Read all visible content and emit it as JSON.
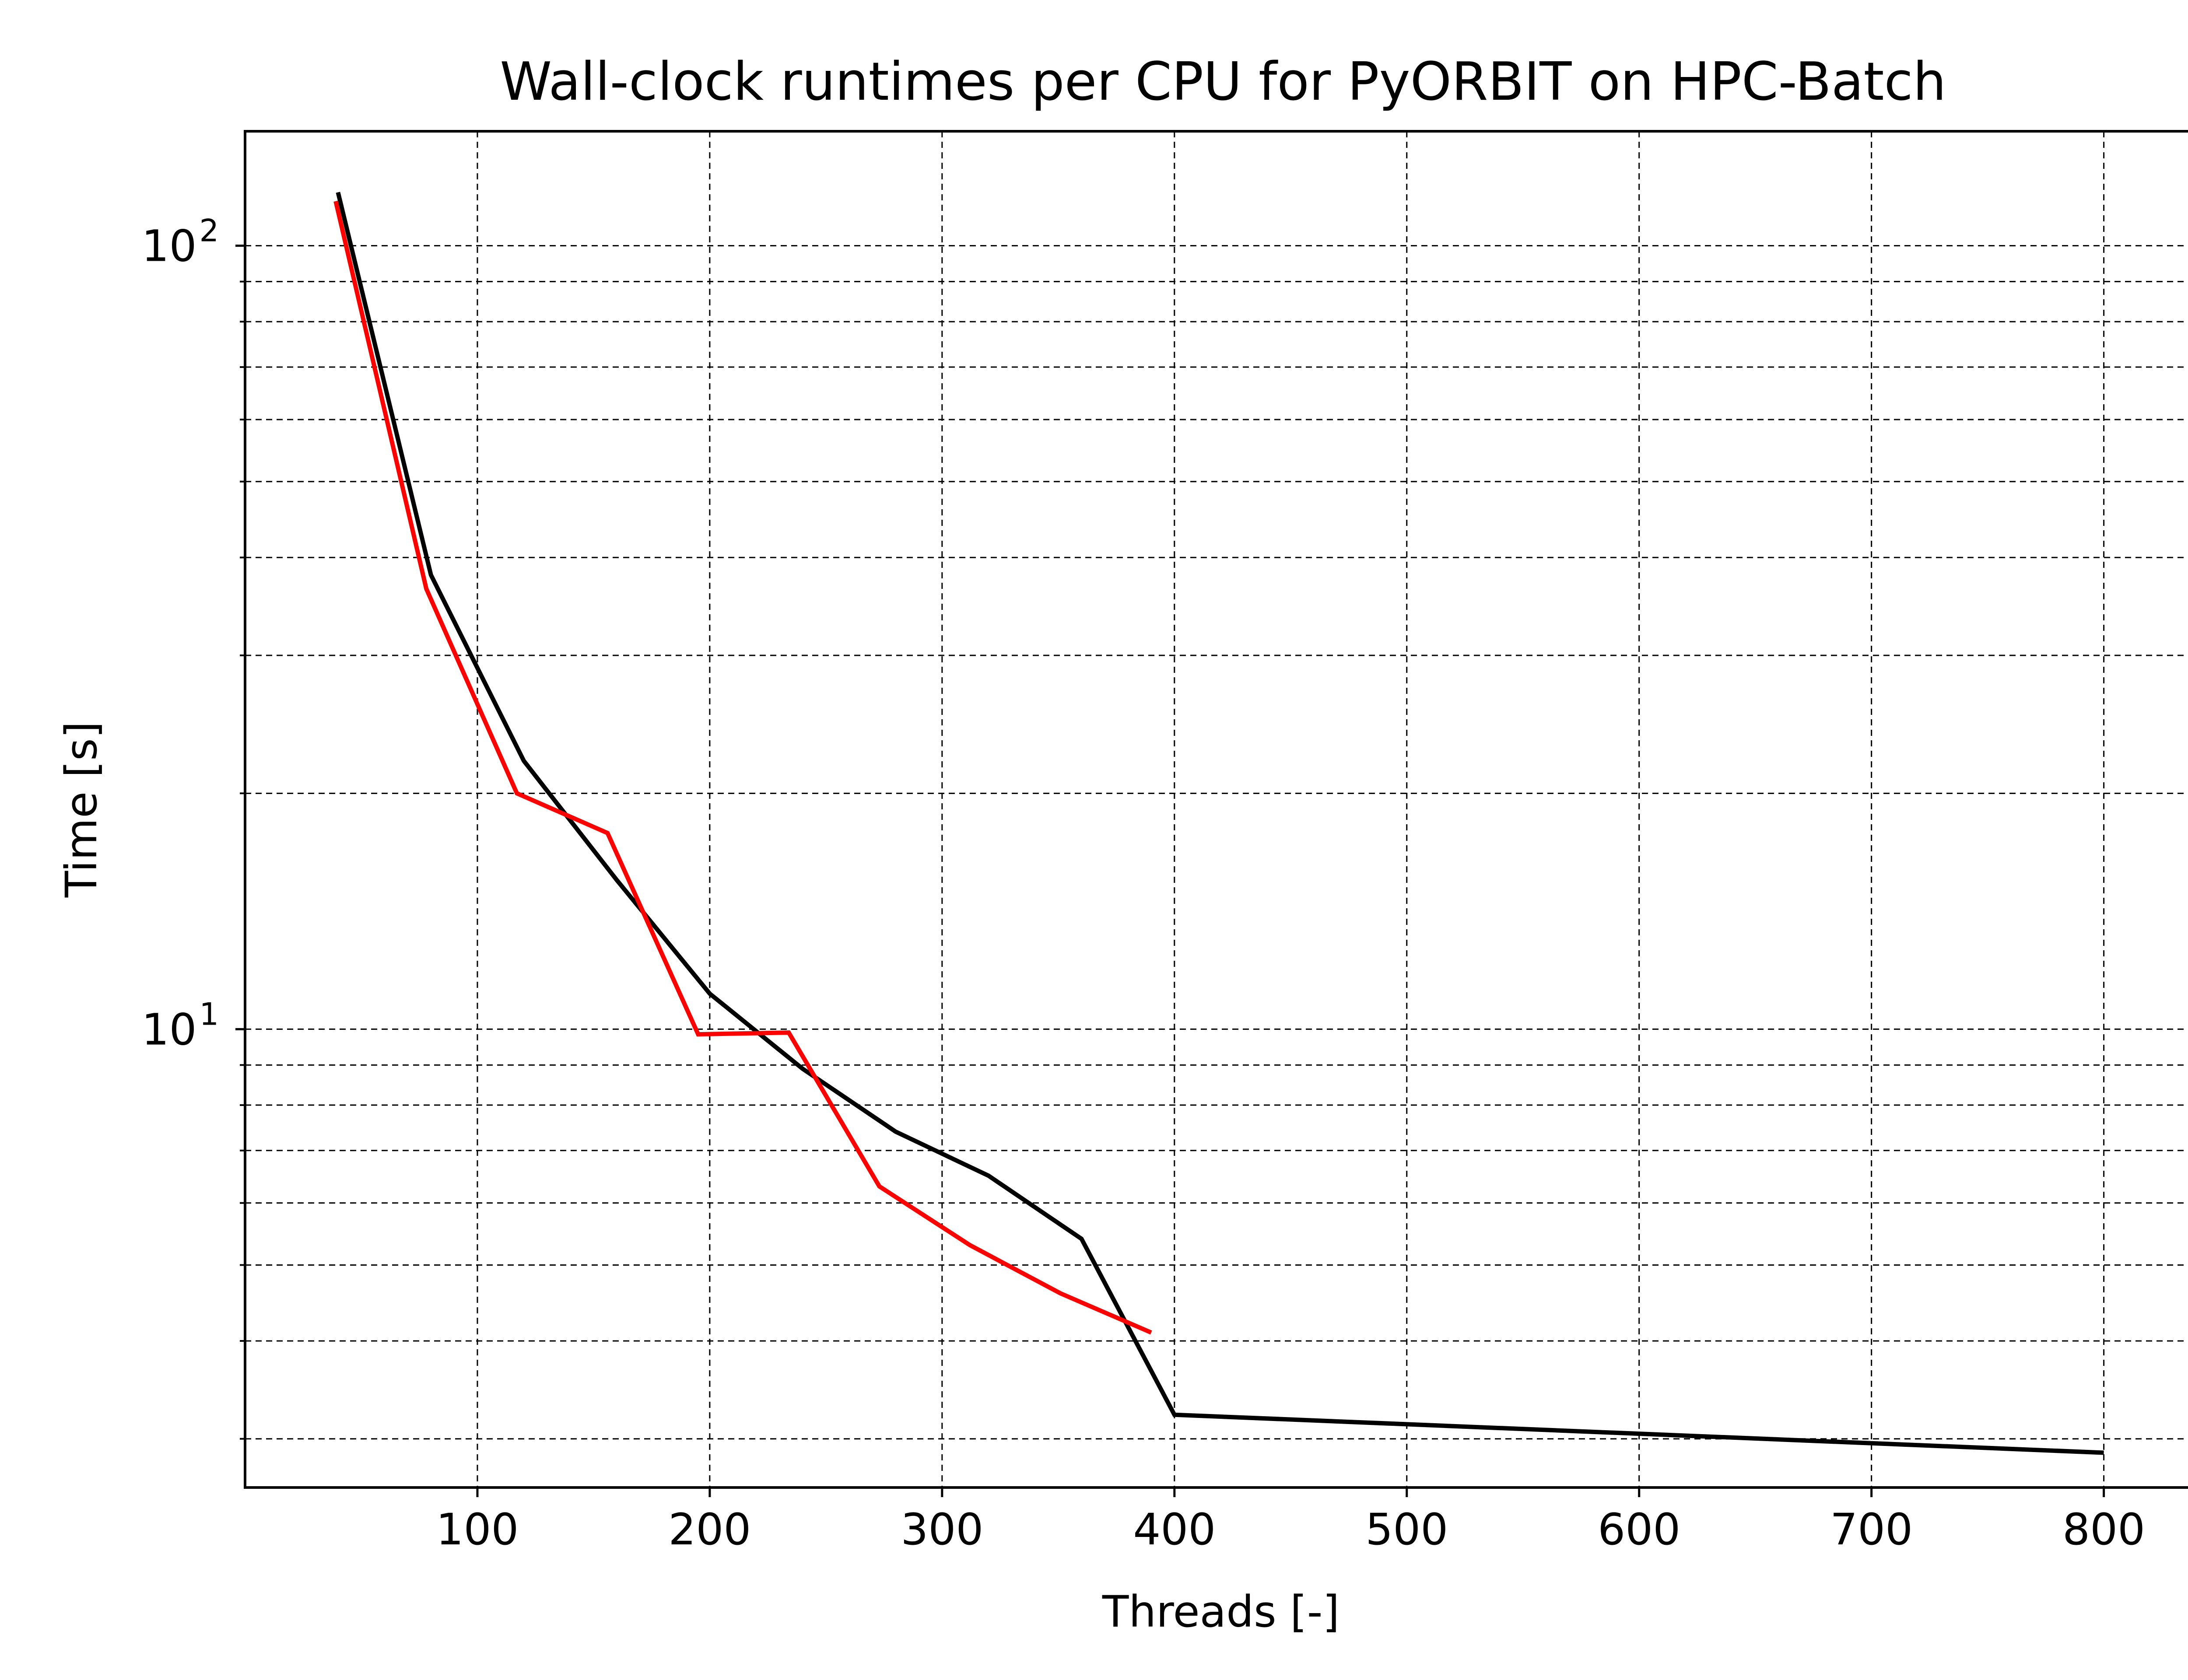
{
  "chart_data": {
    "type": "line",
    "title": "Wall-clock runtimes per CPU for PyORBIT on HPC-Batch",
    "xlabel": "Threads [-]",
    "ylabel": "Time [s]",
    "x_scale": "linear",
    "y_scale": "log",
    "xlim": [
      0,
      840
    ],
    "ylim": [
      2.6,
      140
    ],
    "x_ticks": [
      100,
      200,
      300,
      400,
      500,
      600,
      700,
      800
    ],
    "x_tick_labels": [
      "100",
      "200",
      "300",
      "400",
      "500",
      "600",
      "700",
      "800"
    ],
    "y_major_ticks": [
      {
        "value": 10,
        "base": "10",
        "exp": "1"
      },
      {
        "value": 100,
        "base": "10",
        "exp": "2"
      }
    ],
    "y_minor_ticks": [
      3,
      4,
      5,
      6,
      7,
      8,
      9,
      20,
      30,
      40,
      50,
      60,
      70,
      80,
      90
    ],
    "grid": true,
    "grid_style": "dashed",
    "legend": "none",
    "series": [
      {
        "color": "#000000",
        "x": [
          40,
          80,
          120,
          160,
          200,
          240,
          280,
          320,
          360,
          400,
          800
        ],
        "y": [
          117,
          38,
          22,
          15.5,
          11.1,
          8.9,
          7.4,
          6.5,
          5.4,
          3.22,
          2.88
        ]
      },
      {
        "color": "#ff0000",
        "x": [
          39,
          78,
          117,
          156,
          195,
          234,
          273,
          312,
          351,
          390
        ],
        "y": [
          114,
          36.5,
          20,
          17.8,
          9.85,
          9.9,
          6.3,
          5.3,
          4.6,
          4.1
        ]
      }
    ]
  }
}
